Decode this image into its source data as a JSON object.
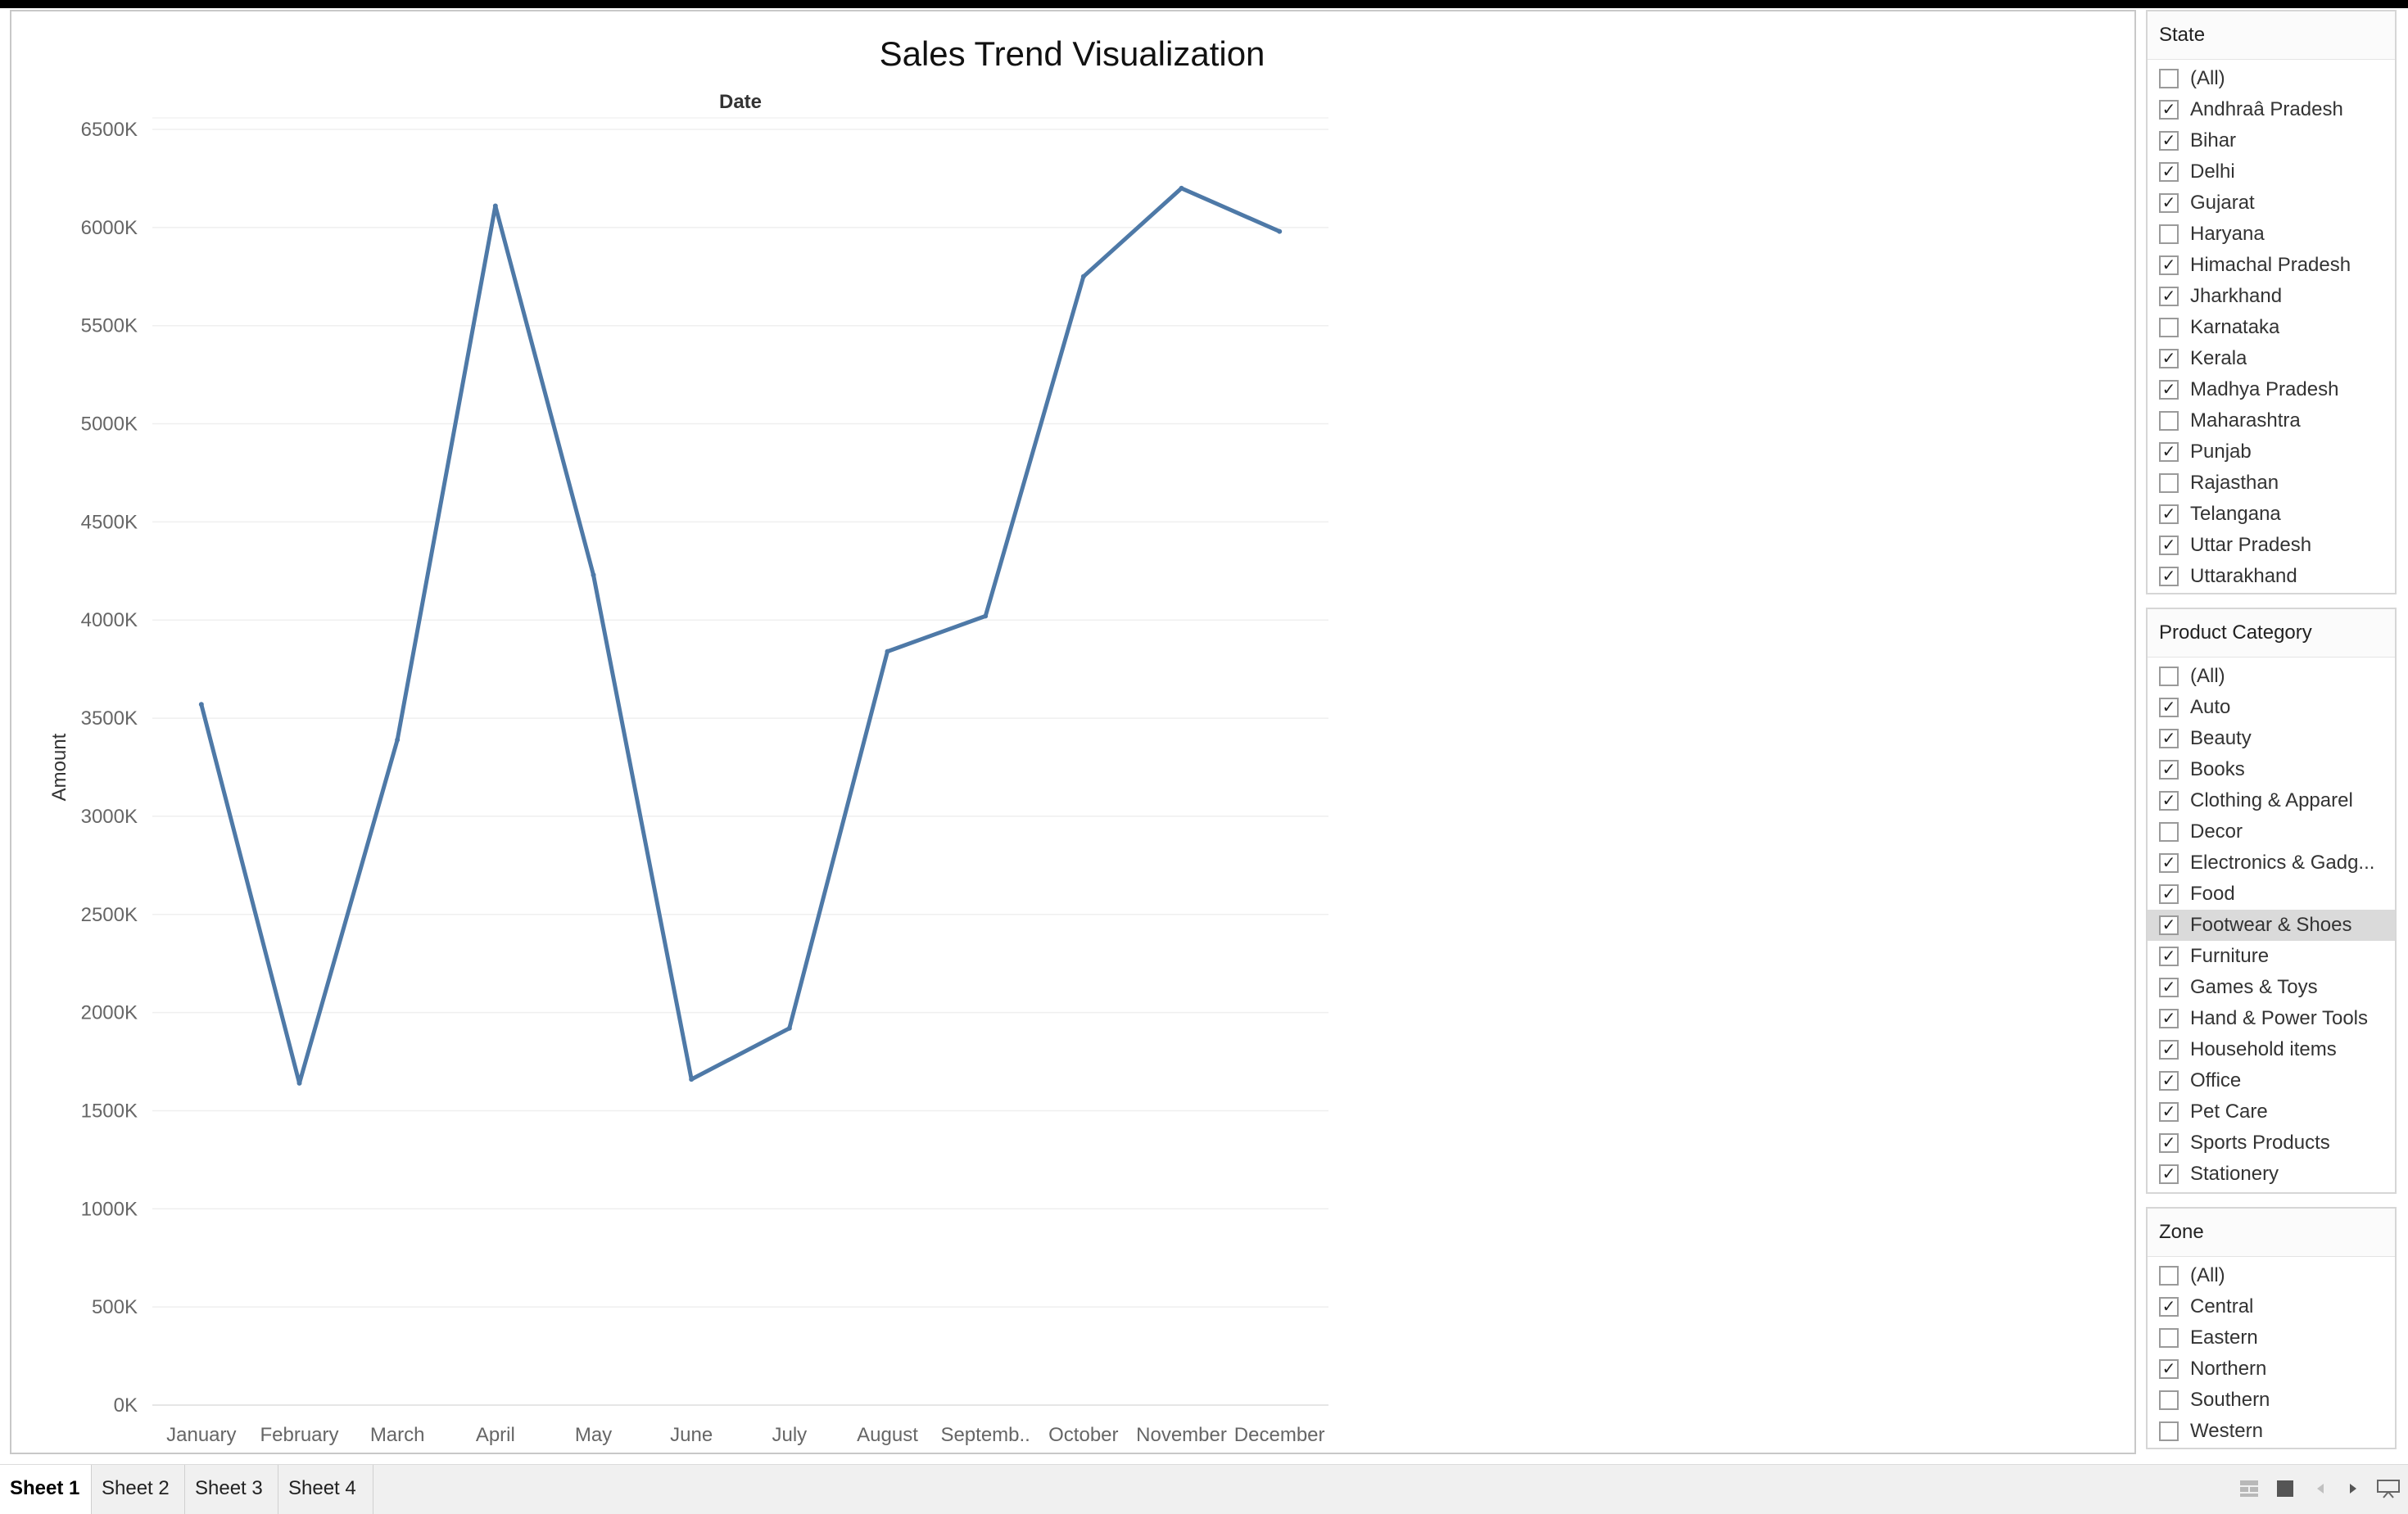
{
  "chart_data": {
    "type": "line",
    "title": "Sales Trend Visualization",
    "header": "Date",
    "ylabel": "Amount",
    "categories": [
      "January",
      "February",
      "March",
      "April",
      "May",
      "June",
      "July",
      "August",
      "Septemb..",
      "October",
      "November",
      "December"
    ],
    "values": [
      3570000,
      1640000,
      3390000,
      6110000,
      4230000,
      1660000,
      1920000,
      3840000,
      4020000,
      5750000,
      6200000,
      5980000
    ],
    "yticks": [
      "0K",
      "500K",
      "1000K",
      "1500K",
      "2000K",
      "2500K",
      "3000K",
      "3500K",
      "4000K",
      "4500K",
      "5000K",
      "5500K",
      "6000K",
      "6500K"
    ],
    "ylim": [
      0,
      6500000
    ],
    "grid": true,
    "line_color": "#4e79a7"
  },
  "filters": {
    "state": {
      "title": "State",
      "items": [
        {
          "label": "(All)",
          "checked": false
        },
        {
          "label": "Andhraâ Pradesh",
          "checked": true
        },
        {
          "label": "Bihar",
          "checked": true
        },
        {
          "label": "Delhi",
          "checked": true
        },
        {
          "label": "Gujarat",
          "checked": true
        },
        {
          "label": "Haryana",
          "checked": false
        },
        {
          "label": "Himachal Pradesh",
          "checked": true
        },
        {
          "label": "Jharkhand",
          "checked": true
        },
        {
          "label": "Karnataka",
          "checked": false
        },
        {
          "label": "Kerala",
          "checked": true
        },
        {
          "label": "Madhya Pradesh",
          "checked": true
        },
        {
          "label": "Maharashtra",
          "checked": false
        },
        {
          "label": "Punjab",
          "checked": true
        },
        {
          "label": "Rajasthan",
          "checked": false
        },
        {
          "label": "Telangana",
          "checked": true
        },
        {
          "label": "Uttar Pradesh",
          "checked": true
        },
        {
          "label": "Uttarakhand",
          "checked": true
        }
      ]
    },
    "product_category": {
      "title": "Product Category",
      "items": [
        {
          "label": "(All)",
          "checked": false
        },
        {
          "label": "Auto",
          "checked": true
        },
        {
          "label": "Beauty",
          "checked": true
        },
        {
          "label": "Books",
          "checked": true
        },
        {
          "label": "Clothing & Apparel",
          "checked": true
        },
        {
          "label": "Decor",
          "checked": false
        },
        {
          "label": "Electronics & Gadg...",
          "checked": true
        },
        {
          "label": "Food",
          "checked": true
        },
        {
          "label": "Footwear & Shoes",
          "checked": true,
          "highlighted": true
        },
        {
          "label": "Furniture",
          "checked": true
        },
        {
          "label": "Games & Toys",
          "checked": true
        },
        {
          "label": "Hand & Power Tools",
          "checked": true
        },
        {
          "label": "Household items",
          "checked": true
        },
        {
          "label": "Office",
          "checked": true
        },
        {
          "label": "Pet Care",
          "checked": true
        },
        {
          "label": "Sports Products",
          "checked": true
        },
        {
          "label": "Stationery",
          "checked": true
        }
      ]
    },
    "zone": {
      "title": "Zone",
      "items": [
        {
          "label": "(All)",
          "checked": false
        },
        {
          "label": "Central",
          "checked": true
        },
        {
          "label": "Eastern",
          "checked": false
        },
        {
          "label": "Northern",
          "checked": true
        },
        {
          "label": "Southern",
          "checked": false
        },
        {
          "label": "Western",
          "checked": false
        }
      ]
    }
  },
  "check_glyph": "✓",
  "sheet_tabs": [
    {
      "label": "Sheet 1",
      "active": true
    },
    {
      "label": "Sheet 2",
      "active": false
    },
    {
      "label": "Sheet 3",
      "active": false
    },
    {
      "label": "Sheet 4",
      "active": false
    }
  ],
  "bottom_icons": [
    "grid-view-icon",
    "single-view-icon",
    "prev-sheet-icon",
    "next-sheet-icon",
    "presentation-icon"
  ]
}
